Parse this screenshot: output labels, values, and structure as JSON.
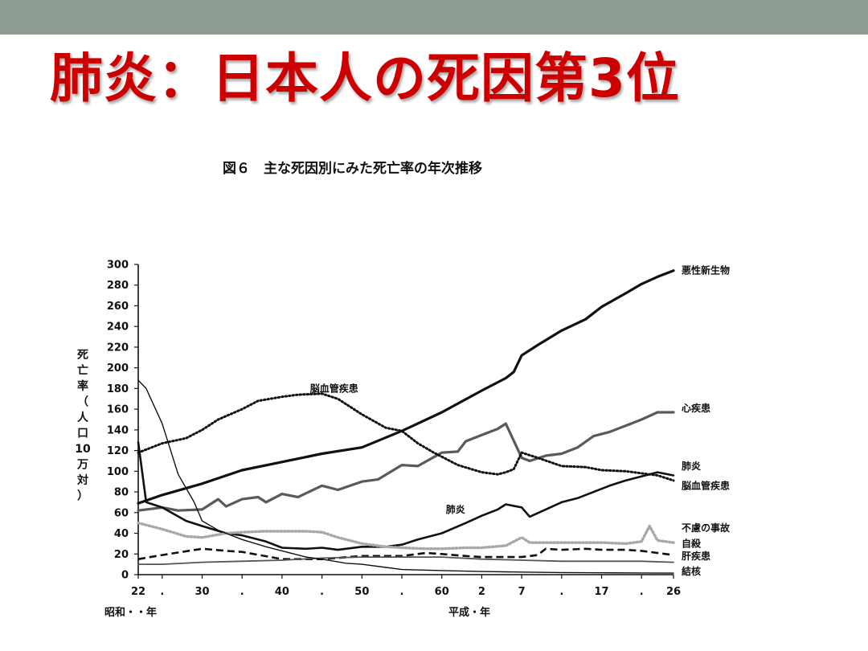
{
  "slide": {
    "title": "肺炎：日本人の死因第3位"
  },
  "chart_data": {
    "type": "line",
    "title": "図６　主な死因別にみた死亡率の年次推移",
    "xlabel_era1": "昭和・・年",
    "xlabel_era2": "平成・年",
    "ylabel": "死亡率（人口10万対）",
    "ylabel_chars": [
      "死",
      "亡",
      "率",
      "（",
      "人",
      "口",
      "10",
      "万",
      "対",
      "）"
    ],
    "ylim": [
      0,
      300
    ],
    "yticks": [
      0,
      20,
      40,
      60,
      80,
      100,
      120,
      140,
      160,
      180,
      200,
      220,
      240,
      260,
      280,
      300
    ],
    "xlim": [
      1947,
      2014
    ],
    "xticks": [
      {
        "x": 1947,
        "label": "22"
      },
      {
        "x": 1950,
        "label": "."
      },
      {
        "x": 1955,
        "label": "30"
      },
      {
        "x": 1960,
        "label": "."
      },
      {
        "x": 1965,
        "label": "40"
      },
      {
        "x": 1970,
        "label": "."
      },
      {
        "x": 1975,
        "label": "50"
      },
      {
        "x": 1980,
        "label": "."
      },
      {
        "x": 1985,
        "label": "60"
      },
      {
        "x": 1990,
        "label": "2"
      },
      {
        "x": 1995,
        "label": "7"
      },
      {
        "x": 2000,
        "label": "."
      },
      {
        "x": 2005,
        "label": "17"
      },
      {
        "x": 2010,
        "label": "."
      },
      {
        "x": 2014,
        "label": "26"
      }
    ],
    "series": [
      {
        "name": "悪性新生物",
        "style": "solid",
        "width": 3.2,
        "color": "#111111",
        "label_x": 2015,
        "label_y": 294,
        "points": [
          [
            1947,
            69
          ],
          [
            1950,
            77
          ],
          [
            1955,
            88
          ],
          [
            1960,
            101
          ],
          [
            1965,
            109
          ],
          [
            1970,
            117
          ],
          [
            1975,
            123
          ],
          [
            1980,
            139
          ],
          [
            1985,
            157
          ],
          [
            1990,
            178
          ],
          [
            1993,
            190
          ],
          [
            1994,
            196
          ],
          [
            1995,
            212
          ],
          [
            1997,
            222
          ],
          [
            2000,
            236
          ],
          [
            2003,
            247
          ],
          [
            2005,
            259
          ],
          [
            2008,
            272
          ],
          [
            2010,
            281
          ],
          [
            2012,
            288
          ],
          [
            2014,
            294
          ]
        ]
      },
      {
        "name": "心疾患",
        "style": "solid",
        "width": 3.2,
        "color": "#5a5a5a",
        "label_x": 2015,
        "label_y": 161,
        "points": [
          [
            1947,
            62
          ],
          [
            1950,
            65
          ],
          [
            1952,
            62
          ],
          [
            1955,
            63
          ],
          [
            1957,
            73
          ],
          [
            1958,
            66
          ],
          [
            1960,
            73
          ],
          [
            1962,
            75
          ],
          [
            1963,
            70
          ],
          [
            1965,
            78
          ],
          [
            1967,
            75
          ],
          [
            1970,
            86
          ],
          [
            1972,
            82
          ],
          [
            1975,
            90
          ],
          [
            1977,
            92
          ],
          [
            1980,
            106
          ],
          [
            1982,
            105
          ],
          [
            1985,
            118
          ],
          [
            1987,
            119
          ],
          [
            1988,
            129
          ],
          [
            1990,
            135
          ],
          [
            1992,
            141
          ],
          [
            1993,
            146
          ],
          [
            1995,
            113
          ],
          [
            1996,
            110
          ],
          [
            1998,
            115
          ],
          [
            2000,
            117
          ],
          [
            2002,
            123
          ],
          [
            2004,
            134
          ],
          [
            2006,
            138
          ],
          [
            2008,
            144
          ],
          [
            2010,
            150
          ],
          [
            2012,
            157
          ],
          [
            2014,
            157
          ]
        ]
      },
      {
        "name": "肺炎",
        "style": "solid",
        "width": 2.6,
        "color": "#111111",
        "label_x": 2015,
        "label_y": 105,
        "mid_label_x": 1985.5,
        "mid_label_y": 63,
        "points": [
          [
            1947,
            128
          ],
          [
            1948,
            70
          ],
          [
            1950,
            65
          ],
          [
            1953,
            52
          ],
          [
            1955,
            47
          ],
          [
            1958,
            40
          ],
          [
            1960,
            38
          ],
          [
            1963,
            32
          ],
          [
            1965,
            26
          ],
          [
            1968,
            25
          ],
          [
            1970,
            26
          ],
          [
            1972,
            24
          ],
          [
            1975,
            27
          ],
          [
            1978,
            27
          ],
          [
            1980,
            29
          ],
          [
            1982,
            34
          ],
          [
            1985,
            40
          ],
          [
            1988,
            50
          ],
          [
            1990,
            57
          ],
          [
            1992,
            63
          ],
          [
            1993,
            68
          ],
          [
            1995,
            65
          ],
          [
            1996,
            56
          ],
          [
            1998,
            63
          ],
          [
            2000,
            70
          ],
          [
            2002,
            74
          ],
          [
            2004,
            80
          ],
          [
            2006,
            86
          ],
          [
            2008,
            91
          ],
          [
            2010,
            95
          ],
          [
            2012,
            99
          ],
          [
            2014,
            96
          ]
        ]
      },
      {
        "name": "脳血管疾患",
        "style": "dotted",
        "width": 3,
        "color": "#111111",
        "label_x": 2015,
        "label_y": 86,
        "mid_label_x": 1968.5,
        "mid_label_y": 180,
        "points": [
          [
            1947,
            118
          ],
          [
            1950,
            127
          ],
          [
            1953,
            132
          ],
          [
            1955,
            140
          ],
          [
            1957,
            150
          ],
          [
            1960,
            160
          ],
          [
            1962,
            168
          ],
          [
            1965,
            172
          ],
          [
            1967,
            174
          ],
          [
            1970,
            175
          ],
          [
            1972,
            170
          ],
          [
            1975,
            155
          ],
          [
            1978,
            142
          ],
          [
            1980,
            139
          ],
          [
            1982,
            127
          ],
          [
            1984,
            118
          ],
          [
            1985,
            114
          ],
          [
            1987,
            106
          ],
          [
            1990,
            99
          ],
          [
            1992,
            97
          ],
          [
            1993,
            99
          ],
          [
            1994,
            102
          ],
          [
            1995,
            118
          ],
          [
            1997,
            113
          ],
          [
            2000,
            105
          ],
          [
            2003,
            104
          ],
          [
            2005,
            101
          ],
          [
            2008,
            100
          ],
          [
            2010,
            98
          ],
          [
            2012,
            96
          ],
          [
            2014,
            91
          ]
        ]
      },
      {
        "name": "不慮の事故",
        "style": "dotted",
        "width": 3.5,
        "color": "#a8a8a8",
        "label_x": 2015,
        "label_y": 45,
        "points": [
          [
            1947,
            50
          ],
          [
            1950,
            44
          ],
          [
            1953,
            37
          ],
          [
            1955,
            36
          ],
          [
            1958,
            40
          ],
          [
            1960,
            41
          ],
          [
            1963,
            42
          ],
          [
            1965,
            42
          ],
          [
            1968,
            42
          ],
          [
            1970,
            41
          ],
          [
            1972,
            36
          ],
          [
            1975,
            30
          ],
          [
            1978,
            27
          ],
          [
            1980,
            26
          ],
          [
            1983,
            25
          ],
          [
            1985,
            25
          ],
          [
            1988,
            26
          ],
          [
            1990,
            26
          ],
          [
            1993,
            28
          ],
          [
            1995,
            36
          ],
          [
            1996,
            31
          ],
          [
            2000,
            31
          ],
          [
            2003,
            31
          ],
          [
            2005,
            31
          ],
          [
            2008,
            30
          ],
          [
            2010,
            32
          ],
          [
            2011,
            47
          ],
          [
            2012,
            33
          ],
          [
            2014,
            31
          ]
        ]
      },
      {
        "name": "自殺",
        "style": "dashed",
        "width": 2.6,
        "color": "#111111",
        "label_x": 2015,
        "label_y": 30,
        "points": [
          [
            1947,
            15
          ],
          [
            1950,
            19
          ],
          [
            1955,
            25
          ],
          [
            1958,
            23
          ],
          [
            1960,
            22
          ],
          [
            1965,
            15
          ],
          [
            1970,
            15
          ],
          [
            1975,
            18
          ],
          [
            1980,
            18
          ],
          [
            1983,
            21
          ],
          [
            1985,
            20
          ],
          [
            1988,
            18
          ],
          [
            1990,
            17
          ],
          [
            1995,
            17
          ],
          [
            1997,
            19
          ],
          [
            1998,
            25
          ],
          [
            2000,
            24
          ],
          [
            2003,
            25
          ],
          [
            2005,
            24
          ],
          [
            2008,
            24
          ],
          [
            2010,
            23
          ],
          [
            2012,
            21
          ],
          [
            2014,
            19
          ]
        ]
      },
      {
        "name": "肝疾患",
        "style": "solid",
        "width": 1.8,
        "color": "#555555",
        "label_x": 2015,
        "label_y": 18,
        "points": [
          [
            1947,
            10
          ],
          [
            1950,
            10
          ],
          [
            1955,
            12
          ],
          [
            1960,
            13
          ],
          [
            1965,
            14
          ],
          [
            1970,
            16
          ],
          [
            1975,
            17
          ],
          [
            1980,
            17
          ],
          [
            1985,
            17
          ],
          [
            1990,
            15
          ],
          [
            1995,
            14
          ],
          [
            2000,
            13
          ],
          [
            2005,
            13
          ],
          [
            2010,
            13
          ],
          [
            2014,
            12
          ]
        ]
      },
      {
        "name": "結核",
        "style": "solid",
        "width": 1.4,
        "color": "#111111",
        "label_x": 2015,
        "label_y": 3,
        "points": [
          [
            1947,
            188
          ],
          [
            1948,
            180
          ],
          [
            1950,
            146
          ],
          [
            1952,
            97
          ],
          [
            1954,
            70
          ],
          [
            1955,
            52
          ],
          [
            1957,
            43
          ],
          [
            1960,
            34
          ],
          [
            1963,
            27
          ],
          [
            1965,
            23
          ],
          [
            1968,
            17
          ],
          [
            1970,
            15
          ],
          [
            1973,
            11
          ],
          [
            1975,
            10
          ],
          [
            1978,
            7
          ],
          [
            1980,
            5
          ],
          [
            1985,
            4
          ],
          [
            1990,
            3
          ],
          [
            1995,
            2.5
          ],
          [
            2000,
            2
          ],
          [
            2005,
            1.8
          ],
          [
            2010,
            1.6
          ],
          [
            2014,
            1.5
          ]
        ]
      }
    ]
  }
}
